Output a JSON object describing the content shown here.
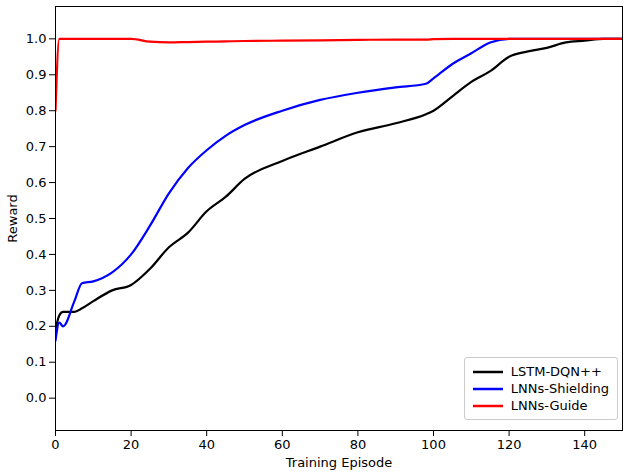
{
  "chart_data": {
    "type": "line",
    "x_label": "Training Episode",
    "y_label": "Reward",
    "x": [
      0,
      1,
      2,
      5,
      7,
      10,
      15,
      20,
      25,
      30,
      35,
      40,
      45,
      50,
      60,
      70,
      80,
      90,
      98,
      100,
      105,
      110,
      115,
      120,
      125,
      130,
      135,
      140,
      145,
      150
    ],
    "series": [
      {
        "name": "LSTM-DQN++",
        "color": "#000000",
        "values": [
          0.19,
          0.23,
          0.24,
          0.24,
          0.25,
          0.27,
          0.3,
          0.315,
          0.36,
          0.42,
          0.46,
          0.52,
          0.56,
          0.61,
          0.66,
          0.7,
          0.74,
          0.765,
          0.79,
          0.8,
          0.84,
          0.88,
          0.91,
          0.95,
          0.965,
          0.975,
          0.99,
          0.995,
          1.0,
          1.0
        ]
      },
      {
        "name": "LNNs-Shielding",
        "color": "#0000ff",
        "values": [
          0.16,
          0.21,
          0.2,
          0.27,
          0.32,
          0.325,
          0.35,
          0.4,
          0.48,
          0.57,
          0.64,
          0.69,
          0.73,
          0.76,
          0.8,
          0.83,
          0.85,
          0.865,
          0.875,
          0.89,
          0.93,
          0.96,
          0.99,
          1.0,
          1.0,
          1.0,
          1.0,
          1.0,
          1.0,
          1.0
        ]
      },
      {
        "name": "LNNs-Guide",
        "color": "#ff0000",
        "values": [
          0.8,
          1.0,
          1.0,
          1.0,
          1.0,
          1.0,
          1.0,
          1.0,
          0.992,
          0.99,
          0.991,
          0.992,
          0.993,
          0.994,
          0.995,
          0.996,
          0.997,
          0.998,
          0.998,
          0.999,
          1.0,
          1.0,
          1.0,
          1.0,
          1.0,
          1.0,
          1.0,
          1.0,
          1.0,
          1.0
        ]
      }
    ],
    "xlim": [
      0,
      150
    ],
    "xticks": [
      0,
      20,
      40,
      60,
      80,
      100,
      120,
      140
    ],
    "ylim": [
      -0.09,
      1.09
    ],
    "yticks": [
      {
        "value": 0,
        "label": "0.0"
      },
      {
        "value": 0.1,
        "label": "0.1"
      },
      {
        "value": 0.2,
        "label": "0.2"
      },
      {
        "value": 0.3,
        "label": "0.3"
      },
      {
        "value": 0.4,
        "label": "0.4"
      },
      {
        "value": 0.5,
        "label": "0.5"
      },
      {
        "value": 0.6,
        "label": "0.6"
      },
      {
        "value": 0.7,
        "label": "0.7"
      },
      {
        "value": 0.8,
        "label": "0.8"
      },
      {
        "value": 0.9,
        "label": "0.9"
      },
      {
        "value": 1.0,
        "label": "1.0"
      }
    ],
    "grid": false,
    "legend": "lower right"
  }
}
